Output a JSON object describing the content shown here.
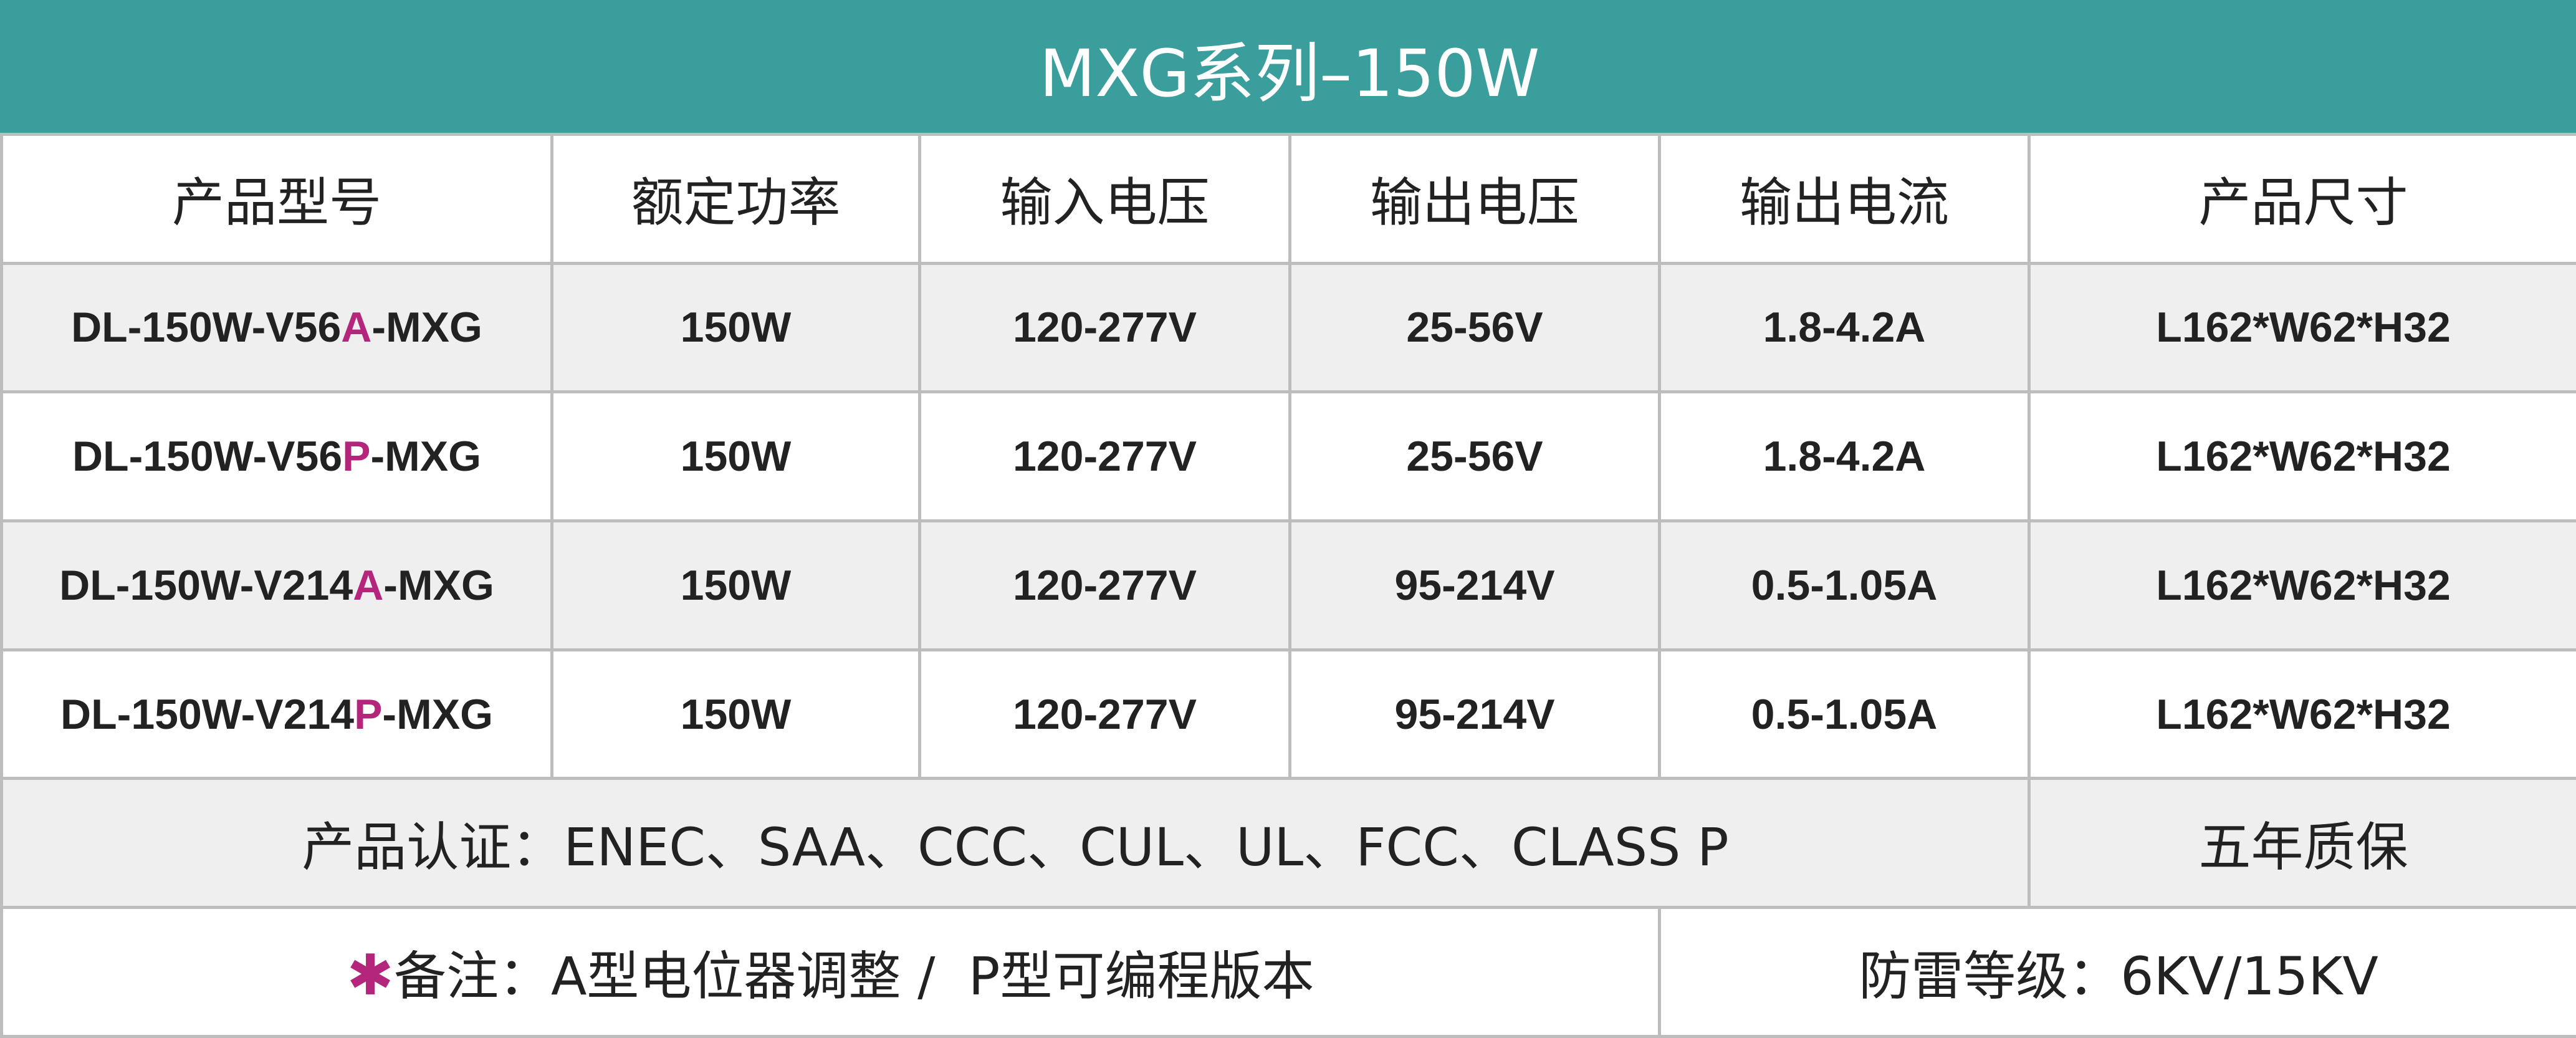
{
  "title": "MXG系列–150W",
  "table": {
    "headers": [
      "产品型号",
      "额定功率",
      "输入电压",
      "输出电压",
      "输出电流",
      "产品尺寸"
    ],
    "rows": [
      [
        [
          "DL-150W-V56",
          "A",
          "-MXG"
        ],
        "150W",
        "120-277V",
        "25-56V",
        "1.8-4.2A",
        "L162*W62*H32"
      ],
      [
        [
          "DL-150W-V56",
          "P",
          "-MXG"
        ],
        "150W",
        "120-277V",
        "25-56V",
        "1.8-4.2A",
        "L162*W62*H32"
      ],
      [
        [
          "DL-150W-V214",
          "A",
          "-MXG"
        ],
        "150W",
        "120-277V",
        "95-214V",
        "0.5-1.05A",
        "L162*W62*H32"
      ],
      [
        [
          "DL-150W-V214",
          "P",
          "-MXG"
        ],
        "150W",
        "120-277V",
        "95-214V",
        "0.5-1.05A",
        "L162*W62*H32"
      ]
    ]
  },
  "certification": "产品认证：ENEC、SAA、CCC、CUL、UL、FCC、CLASS P",
  "warranty": "五年质保",
  "note": {
    "mark": "✱",
    "text": "备注：A型电位器调整 /  P型可编程版本"
  },
  "lightning_protection": "防雷等级：6KV/15KV"
}
